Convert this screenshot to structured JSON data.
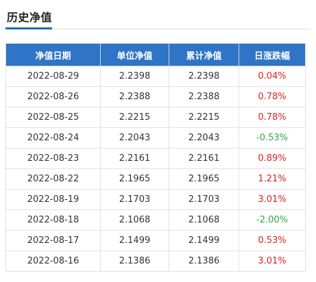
{
  "section": {
    "title": "历史净值"
  },
  "table": {
    "headers": [
      "净值日期",
      "单位净值",
      "累计净值",
      "日涨跌幅"
    ],
    "rows": [
      {
        "date": "2022-08-29",
        "unit_nav": "2.2398",
        "cumulative_nav": "2.2398",
        "daily_change": "0.04%",
        "direction": "up"
      },
      {
        "date": "2022-08-26",
        "unit_nav": "2.2388",
        "cumulative_nav": "2.2388",
        "daily_change": "0.78%",
        "direction": "up"
      },
      {
        "date": "2022-08-25",
        "unit_nav": "2.2215",
        "cumulative_nav": "2.2215",
        "daily_change": "0.78%",
        "direction": "up"
      },
      {
        "date": "2022-08-24",
        "unit_nav": "2.2043",
        "cumulative_nav": "2.2043",
        "daily_change": "-0.53%",
        "direction": "down"
      },
      {
        "date": "2022-08-23",
        "unit_nav": "2.2161",
        "cumulative_nav": "2.2161",
        "daily_change": "0.89%",
        "direction": "up"
      },
      {
        "date": "2022-08-22",
        "unit_nav": "2.1965",
        "cumulative_nav": "2.1965",
        "daily_change": "1.21%",
        "direction": "up"
      },
      {
        "date": "2022-08-19",
        "unit_nav": "2.1703",
        "cumulative_nav": "2.1703",
        "daily_change": "3.01%",
        "direction": "up"
      },
      {
        "date": "2022-08-18",
        "unit_nav": "2.1068",
        "cumulative_nav": "2.1068",
        "daily_change": "-2.00%",
        "direction": "down"
      },
      {
        "date": "2022-08-17",
        "unit_nav": "2.1499",
        "cumulative_nav": "2.1499",
        "daily_change": "0.53%",
        "direction": "up"
      },
      {
        "date": "2022-08-16",
        "unit_nav": "2.1386",
        "cumulative_nav": "2.1386",
        "daily_change": "3.01%",
        "direction": "up"
      }
    ]
  },
  "colors": {
    "header_bg": "#2f74c6",
    "accent_underline": "#1a6bbf",
    "positive": "#e02020",
    "negative": "#2ea64a"
  }
}
